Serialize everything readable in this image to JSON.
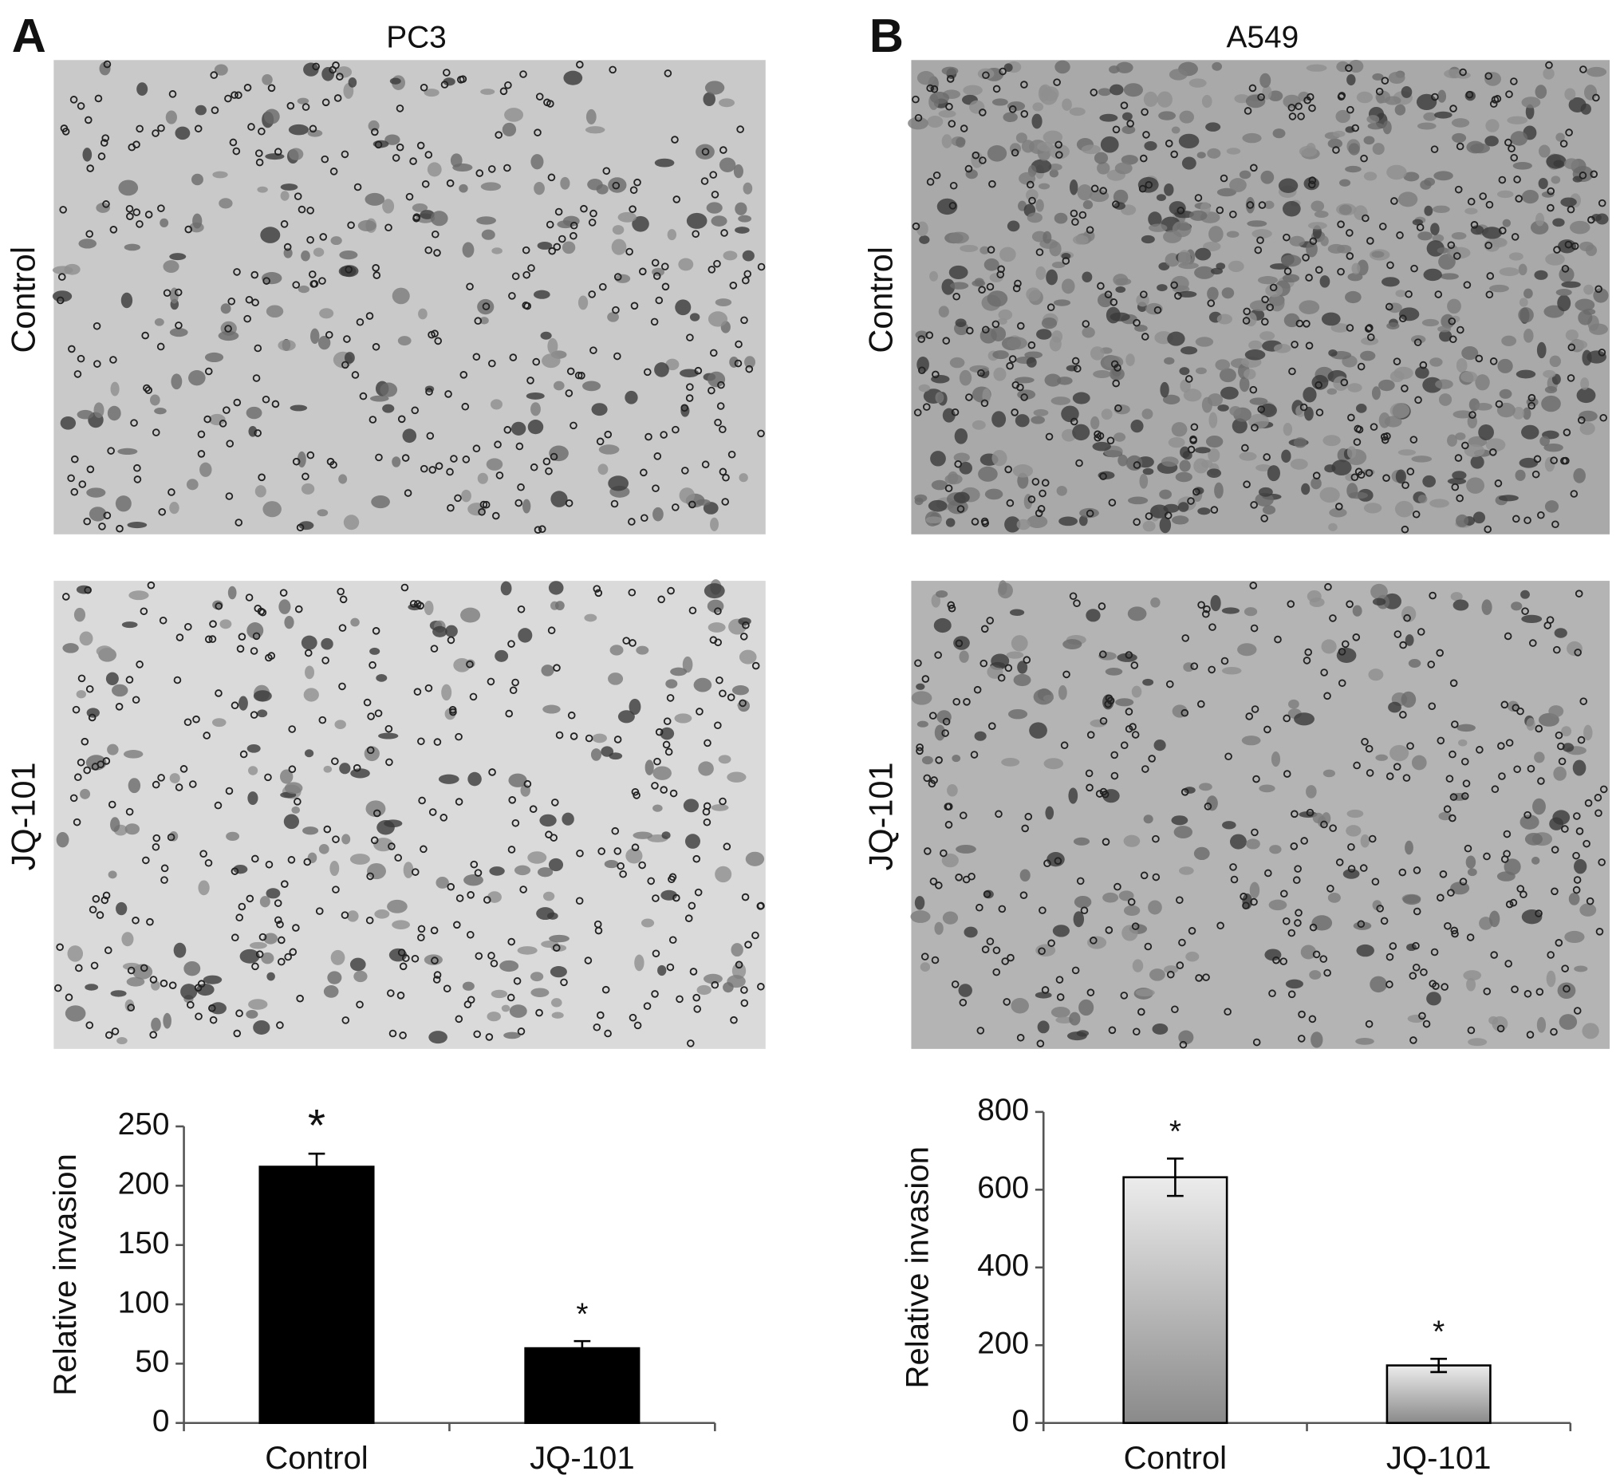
{
  "chart_data": [
    {
      "type": "bar",
      "panel": "A",
      "title": "PC3",
      "row_labels": [
        "Control",
        "JQ-101"
      ],
      "ylabel": "Relative invasion",
      "categories": [
        "Control",
        "JQ-101"
      ],
      "values": [
        216,
        63
      ],
      "errors": [
        11,
        6
      ],
      "annotations": [
        "*",
        "*"
      ],
      "color": "#000000",
      "ylim": [
        0,
        250
      ],
      "yticks": [
        0,
        50,
        100,
        150,
        200,
        250
      ]
    },
    {
      "type": "bar",
      "panel": "B",
      "title": "A549",
      "row_labels": [
        "Control",
        "JQ-101"
      ],
      "ylabel": "Relative invasion",
      "categories": [
        "Control",
        "JQ-101"
      ],
      "values": [
        632,
        148
      ],
      "errors": [
        48,
        17
      ],
      "annotations": [
        "*",
        "*"
      ],
      "color": "#000000",
      "fill_gradient": [
        "#ececec",
        "#8a8a8a"
      ],
      "ylim": [
        0,
        800
      ],
      "yticks": [
        0,
        200,
        400,
        600,
        800
      ]
    }
  ]
}
